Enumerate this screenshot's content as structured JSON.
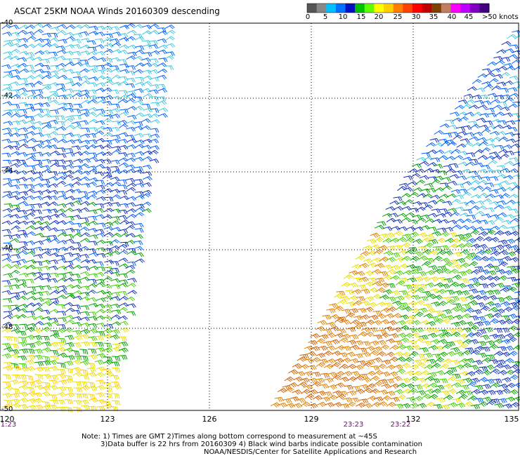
{
  "title": "ASCAT 25KM NOAA Winds 20160309 descending",
  "legend": {
    "units_label": ">50 knots",
    "ticks": [
      "0",
      "5",
      "10",
      "15",
      "20",
      "25",
      "30",
      "35",
      "40",
      "45"
    ],
    "colors": [
      "#555555",
      "#888888",
      "#00c0ff",
      "#0070ff",
      "#0010c0",
      "#00c000",
      "#60ff00",
      "#ffff00",
      "#ffd000",
      "#ff8000",
      "#ff4000",
      "#ff0000",
      "#c00000",
      "#804000",
      "#c08060",
      "#ff00ff",
      "#c000ff",
      "#8000c0",
      "#400080"
    ]
  },
  "lat_labels": [
    "-40",
    "-42",
    "-44",
    "-46",
    "-48",
    "-50"
  ],
  "lon_labels": [
    "120",
    "123",
    "126",
    "129",
    "132",
    "135"
  ],
  "time_labels": [
    "1:23",
    "23:23",
    "23:22"
  ],
  "notes": {
    "line1": "Note: 1) Times are GMT 2)Times along bottom correspond to measurement at ~45S",
    "line2": "3)Data buffer is 22 hrs from 20160309 4) Black wind barbs indicate possible contamination",
    "line3": "NOAA/NESDIS/Center for Satellite Applications and Research"
  },
  "palette": {
    "background": "#ffffff",
    "grid": "#000000",
    "swath_colors": [
      "#40c8e0",
      "#0060ff",
      "#1030c0",
      "#00a000",
      "#40d000",
      "#e8e000",
      "#ffd000",
      "#e08000",
      "#d06000"
    ]
  }
}
